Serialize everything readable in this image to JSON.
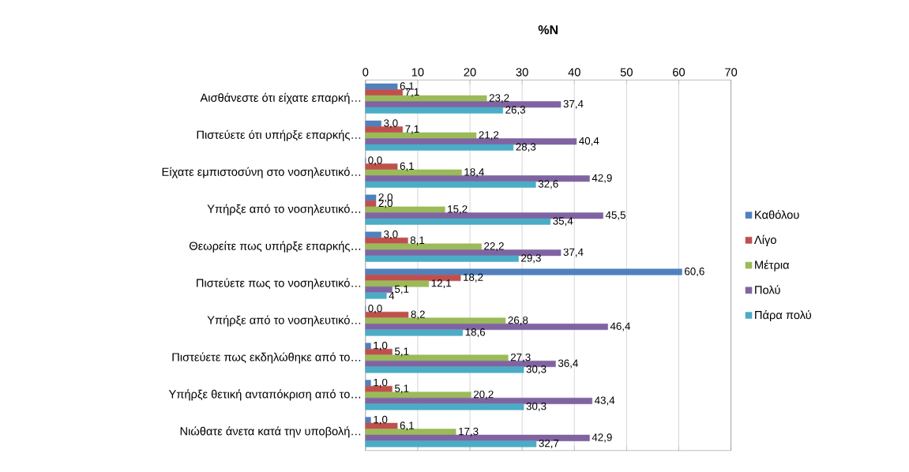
{
  "chart_data": {
    "type": "bar",
    "orientation": "horizontal",
    "title": "%N",
    "categories": [
      "Αισθάνεστε ότι είχατε επαρκή…",
      "Πιστεύετε ότι υπήρξε επαρκής…",
      "Είχατε εμπιστοσύνη στο νοσηλευτικό…",
      "Υπήρξε από το νοσηλευτικό…",
      "Θεωρείτε πως υπήρξε επαρκής…",
      "Πιστεύετε πως το νοσηλευτικό…",
      "Υπήρξε από το νοσηλευτικό…",
      "Πιστεύετε πως εκδηλώθηκε από το…",
      "Υπήρξε θετική ανταπόκριση από το…",
      "Νιώθατε άνετα κατά την υποβολή…"
    ],
    "series": [
      {
        "name": "Καθόλου",
        "color": "#4f81bd",
        "values": [
          6.1,
          3.0,
          0.0,
          2.0,
          3.0,
          60.6,
          0.0,
          1.0,
          1.0,
          1.0
        ],
        "value_labels": [
          "6,1",
          "3,0",
          "0,0",
          "2,0",
          "3,0",
          "60,6",
          "0,0",
          "1,0",
          "1,0",
          "1,0"
        ]
      },
      {
        "name": "Λίγο",
        "color": "#c0504d",
        "values": [
          7.1,
          7.1,
          6.1,
          2.0,
          8.1,
          18.2,
          8.2,
          5.1,
          5.1,
          6.1
        ],
        "value_labels": [
          "7,1",
          "7,1",
          "6,1",
          "2,0",
          "8,1",
          "18,2",
          "8,2",
          "5,1",
          "5,1",
          "6,1"
        ]
      },
      {
        "name": "Μέτρια",
        "color": "#9bbb59",
        "values": [
          23.2,
          21.2,
          18.4,
          15.2,
          22.2,
          12.1,
          26.8,
          27.3,
          20.2,
          17.3
        ],
        "value_labels": [
          "23,2",
          "21,2",
          "18,4",
          "15,2",
          "22,2",
          "12,1",
          "26,8",
          "27,3",
          "20,2",
          "17,3"
        ]
      },
      {
        "name": "Πολύ",
        "color": "#8064a2",
        "values": [
          37.4,
          40.4,
          42.9,
          45.5,
          37.4,
          5.1,
          46.4,
          36.4,
          43.4,
          42.9
        ],
        "value_labels": [
          "37,4",
          "40,4",
          "42,9",
          "45,5",
          "37,4",
          "5,1",
          "46,4",
          "36,4",
          "43,4",
          "42,9"
        ]
      },
      {
        "name": "Πάρα πολύ",
        "color": "#4bacc6",
        "values": [
          26.3,
          28.3,
          32.6,
          35.4,
          29.3,
          4,
          18.6,
          30.3,
          30.3,
          32.7
        ],
        "value_labels": [
          "26,3",
          "28,3",
          "32,6",
          "35,4",
          "29,3",
          "4",
          "18,6",
          "30,3",
          "30,3",
          "32,7"
        ]
      }
    ],
    "xlim": [
      0,
      70
    ],
    "xticks": [
      0,
      10,
      20,
      30,
      40,
      50,
      60,
      70
    ],
    "grid": "x",
    "legend": "right"
  }
}
